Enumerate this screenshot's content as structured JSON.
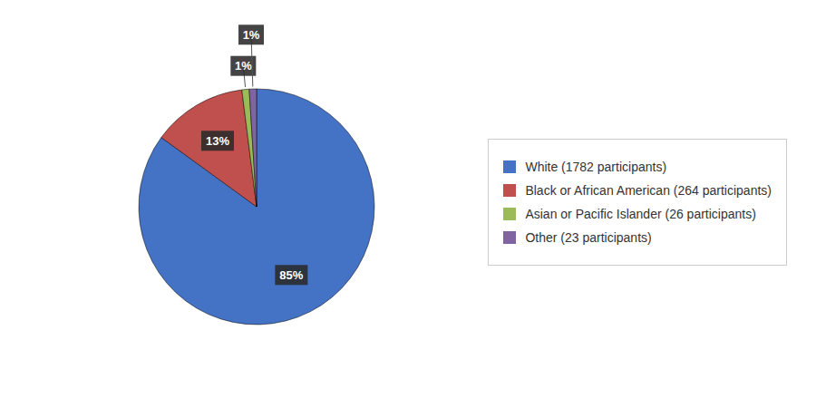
{
  "chart_data": {
    "type": "pie",
    "categories": [
      "White (1782 participants)",
      "Black or African American (264 participants)",
      "Asian or Pacific Islander (26 participants)",
      "Other (23 participants)"
    ],
    "values": [
      85,
      13,
      1,
      1
    ],
    "value_labels": [
      "85%",
      "13%",
      "1%",
      "1%"
    ],
    "colors": [
      "#4472C4",
      "#C0504D",
      "#9BBB59",
      "#8064A2"
    ],
    "data_labels": true,
    "legend": "right"
  }
}
